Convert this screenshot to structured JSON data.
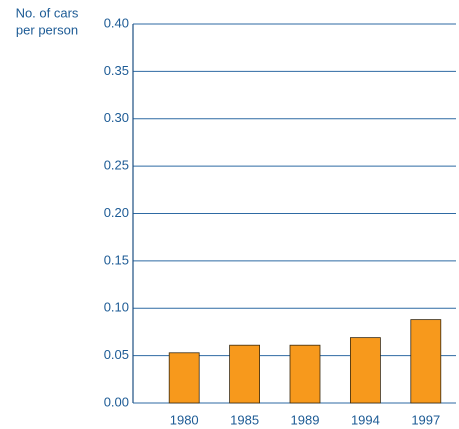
{
  "chart_data": {
    "type": "bar",
    "ylabel": [
      "No. of cars",
      "per person"
    ],
    "categories": [
      "1980",
      "1985",
      "1989",
      "1994",
      "1997"
    ],
    "values": [
      0.053,
      0.061,
      0.061,
      0.069,
      0.088
    ],
    "color": "#f7991c",
    "ylim": [
      0,
      0.4
    ],
    "yticks": [
      {
        "value": 0,
        "label": "0.00"
      },
      {
        "value": 0.05,
        "label": "0.05"
      },
      {
        "value": 0.1,
        "label": "0.10"
      },
      {
        "value": 0.15,
        "label": "0.15"
      },
      {
        "value": 0.2,
        "label": "0.20"
      },
      {
        "value": 0.25,
        "label": "0.25"
      },
      {
        "value": 0.3,
        "label": "0.30"
      },
      {
        "value": 0.35,
        "label": "0.35"
      },
      {
        "value": 0.4,
        "label": "0.40"
      }
    ],
    "grid": true
  }
}
